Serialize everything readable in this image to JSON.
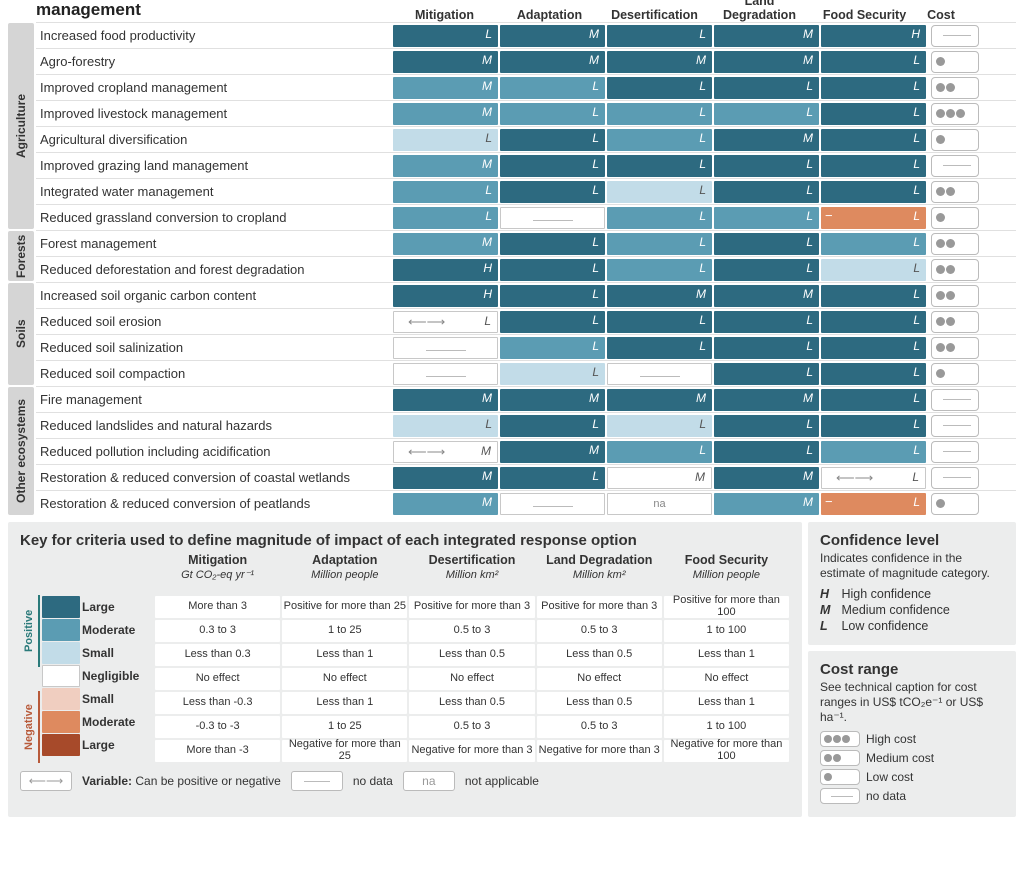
{
  "title": "Response options based on land management",
  "columns": [
    "Mitigation",
    "Adaptation",
    "Desertification",
    "Land Degradation",
    "Food Security"
  ],
  "cost_header": "Cost",
  "colors": {
    "pos_large": "#2d6a80",
    "pos_moderate": "#5b9cb3",
    "pos_small": "#c2dce8",
    "negligible": "#ffffff",
    "neg_small": "#f0cec0",
    "neg_moderate": "#de8a5f",
    "neg_large": "#a74a2a",
    "border": "#c8c8c8",
    "bg_legend": "#eceded"
  },
  "categories": [
    {
      "name": "Agriculture",
      "span": 8
    },
    {
      "name": "Forests",
      "span": 2
    },
    {
      "name": "Soils",
      "span": 4
    },
    {
      "name": "Other ecosystems",
      "span": 5
    }
  ],
  "rows": [
    {
      "label": "Increased food productivity",
      "cells": [
        {
          "c": "pos_large",
          "k": "L"
        },
        {
          "c": "pos_large",
          "k": "M"
        },
        {
          "c": "pos_large",
          "k": "L"
        },
        {
          "c": "pos_large",
          "k": "M"
        },
        {
          "c": "pos_large",
          "k": "H"
        }
      ],
      "cost": "nodata"
    },
    {
      "label": "Agro-forestry",
      "cells": [
        {
          "c": "pos_large",
          "k": "M"
        },
        {
          "c": "pos_large",
          "k": "M"
        },
        {
          "c": "pos_large",
          "k": "M"
        },
        {
          "c": "pos_large",
          "k": "M"
        },
        {
          "c": "pos_large",
          "k": "L"
        }
      ],
      "cost": 1
    },
    {
      "label": "Improved cropland management",
      "cells": [
        {
          "c": "pos_moderate",
          "k": "M"
        },
        {
          "c": "pos_moderate",
          "k": "L"
        },
        {
          "c": "pos_large",
          "k": "L"
        },
        {
          "c": "pos_large",
          "k": "L"
        },
        {
          "c": "pos_large",
          "k": "L"
        }
      ],
      "cost": 2
    },
    {
      "label": "Improved livestock management",
      "cells": [
        {
          "c": "pos_moderate",
          "k": "M"
        },
        {
          "c": "pos_moderate",
          "k": "L"
        },
        {
          "c": "pos_moderate",
          "k": "L"
        },
        {
          "c": "pos_moderate",
          "k": "L"
        },
        {
          "c": "pos_large",
          "k": "L"
        }
      ],
      "cost": 3
    },
    {
      "label": "Agricultural diversification",
      "cells": [
        {
          "c": "pos_small",
          "k": "L"
        },
        {
          "c": "pos_large",
          "k": "L"
        },
        {
          "c": "pos_moderate",
          "k": "L"
        },
        {
          "c": "pos_large",
          "k": "M"
        },
        {
          "c": "pos_large",
          "k": "L"
        }
      ],
      "cost": 1
    },
    {
      "label": "Improved grazing land management",
      "cells": [
        {
          "c": "pos_moderate",
          "k": "M"
        },
        {
          "c": "pos_large",
          "k": "L"
        },
        {
          "c": "pos_large",
          "k": "L"
        },
        {
          "c": "pos_large",
          "k": "L"
        },
        {
          "c": "pos_large",
          "k": "L"
        }
      ],
      "cost": "nodata"
    },
    {
      "label": "Integrated water management",
      "cells": [
        {
          "c": "pos_moderate",
          "k": "L"
        },
        {
          "c": "pos_large",
          "k": "L"
        },
        {
          "c": "pos_small",
          "k": "L"
        },
        {
          "c": "pos_large",
          "k": "L"
        },
        {
          "c": "pos_large",
          "k": "L"
        }
      ],
      "cost": 2
    },
    {
      "label": "Reduced grassland conversion to cropland",
      "cells": [
        {
          "c": "pos_moderate",
          "k": "L"
        },
        {
          "c": "negligible",
          "k": "",
          "nodata": true
        },
        {
          "c": "pos_moderate",
          "k": "L"
        },
        {
          "c": "pos_moderate",
          "k": "L"
        },
        {
          "c": "neg_moderate",
          "k": "L",
          "neg": true
        }
      ],
      "cost": 1
    },
    {
      "label": "Forest management",
      "cells": [
        {
          "c": "pos_moderate",
          "k": "M"
        },
        {
          "c": "pos_large",
          "k": "L"
        },
        {
          "c": "pos_moderate",
          "k": "L"
        },
        {
          "c": "pos_large",
          "k": "L"
        },
        {
          "c": "pos_moderate",
          "k": "L"
        }
      ],
      "cost": 2
    },
    {
      "label": "Reduced deforestation and forest degradation",
      "cells": [
        {
          "c": "pos_large",
          "k": "H"
        },
        {
          "c": "pos_large",
          "k": "L"
        },
        {
          "c": "pos_moderate",
          "k": "L"
        },
        {
          "c": "pos_large",
          "k": "L"
        },
        {
          "c": "pos_small",
          "k": "L"
        }
      ],
      "cost": 2
    },
    {
      "label": "Increased soil organic carbon content",
      "cells": [
        {
          "c": "pos_large",
          "k": "H"
        },
        {
          "c": "pos_large",
          "k": "L"
        },
        {
          "c": "pos_large",
          "k": "M"
        },
        {
          "c": "pos_large",
          "k": "M"
        },
        {
          "c": "pos_large",
          "k": "L"
        }
      ],
      "cost": 2
    },
    {
      "label": "Reduced soil erosion",
      "cells": [
        {
          "c": "negligible",
          "k": "L",
          "variable": true
        },
        {
          "c": "pos_large",
          "k": "L"
        },
        {
          "c": "pos_large",
          "k": "L"
        },
        {
          "c": "pos_large",
          "k": "L"
        },
        {
          "c": "pos_large",
          "k": "L"
        }
      ],
      "cost": 2
    },
    {
      "label": "Reduced soil salinization",
      "cells": [
        {
          "c": "negligible",
          "k": "",
          "nodata": true
        },
        {
          "c": "pos_moderate",
          "k": "L"
        },
        {
          "c": "pos_large",
          "k": "L"
        },
        {
          "c": "pos_large",
          "k": "L"
        },
        {
          "c": "pos_large",
          "k": "L"
        }
      ],
      "cost": 2
    },
    {
      "label": "Reduced soil compaction",
      "cells": [
        {
          "c": "negligible",
          "k": "",
          "nodata": true
        },
        {
          "c": "pos_small",
          "k": "L"
        },
        {
          "c": "negligible",
          "k": "",
          "nodata": true
        },
        {
          "c": "pos_large",
          "k": "L"
        },
        {
          "c": "pos_large",
          "k": "L"
        }
      ],
      "cost": 1
    },
    {
      "label": "Fire management",
      "cells": [
        {
          "c": "pos_large",
          "k": "M"
        },
        {
          "c": "pos_large",
          "k": "M"
        },
        {
          "c": "pos_large",
          "k": "M"
        },
        {
          "c": "pos_large",
          "k": "M"
        },
        {
          "c": "pos_large",
          "k": "L"
        }
      ],
      "cost": "nodata"
    },
    {
      "label": "Reduced landslides and natural hazards",
      "cells": [
        {
          "c": "pos_small",
          "k": "L"
        },
        {
          "c": "pos_large",
          "k": "L"
        },
        {
          "c": "pos_small",
          "k": "L"
        },
        {
          "c": "pos_large",
          "k": "L"
        },
        {
          "c": "pos_large",
          "k": "L"
        }
      ],
      "cost": "nodata"
    },
    {
      "label": "Reduced pollution including acidification",
      "cells": [
        {
          "c": "negligible",
          "k": "M",
          "variable": true
        },
        {
          "c": "pos_large",
          "k": "M"
        },
        {
          "c": "pos_moderate",
          "k": "L"
        },
        {
          "c": "pos_large",
          "k": "L"
        },
        {
          "c": "pos_moderate",
          "k": "L"
        }
      ],
      "cost": "nodata"
    },
    {
      "label": "Restoration & reduced conversion of coastal wetlands",
      "cells": [
        {
          "c": "pos_large",
          "k": "M"
        },
        {
          "c": "pos_large",
          "k": "L"
        },
        {
          "c": "negligible",
          "k": "M",
          "nodata": false
        },
        {
          "c": "pos_large",
          "k": "M"
        },
        {
          "c": "negligible",
          "k": "L",
          "variable": true
        }
      ],
      "cost": "nodata"
    },
    {
      "label": "Restoration & reduced conversion of peatlands",
      "cells": [
        {
          "c": "pos_moderate",
          "k": "M"
        },
        {
          "c": "negligible",
          "k": "",
          "nodata": true
        },
        {
          "c": "negligible",
          "k": "",
          "na": true
        },
        {
          "c": "pos_moderate",
          "k": "M"
        },
        {
          "c": "neg_moderate",
          "k": "L",
          "neg": true
        }
      ],
      "cost": 1
    }
  ],
  "key": {
    "title": "Key for criteria used to define magnitude of impact of each integrated response option",
    "cols": [
      {
        "h": "Mitigation",
        "u": "Gt CO₂-eq yr⁻¹"
      },
      {
        "h": "Adaptation",
        "u": "Million people"
      },
      {
        "h": "Desertification",
        "u": "Million km²"
      },
      {
        "h": "Land Degradation",
        "u": "Million km²"
      },
      {
        "h": "Food Security",
        "u": "Million people"
      }
    ],
    "side_pos": "Positive",
    "side_neg": "Negative",
    "levels": [
      "Large",
      "Moderate",
      "Small",
      "Negligible",
      "Small",
      "Moderate",
      "Large"
    ],
    "level_colors": [
      "pos_large",
      "pos_moderate",
      "pos_small",
      "negligible",
      "neg_small",
      "neg_moderate",
      "neg_large"
    ],
    "data": [
      [
        "More than 3",
        "Positive for more than 25",
        "Positive for more than 3",
        "Positive for more than 3",
        "Positive for more than 100"
      ],
      [
        "0.3 to 3",
        "1 to 25",
        "0.5 to 3",
        "0.5 to 3",
        "1 to 100"
      ],
      [
        "Less than 0.3",
        "Less than 1",
        "Less than 0.5",
        "Less than 0.5",
        "Less than 1"
      ],
      [
        "No effect",
        "No effect",
        "No effect",
        "No effect",
        "No effect"
      ],
      [
        "Less than -0.3",
        "Less than 1",
        "Less than 0.5",
        "Less than 0.5",
        "Less than 1"
      ],
      [
        "-0.3 to -3",
        "1 to 25",
        "0.5 to 3",
        "0.5 to 3",
        "1 to 100"
      ],
      [
        "More than -3",
        "Negative for more than 25",
        "Negative for more than 3",
        "Negative for more than 3",
        "Negative for more than 100"
      ]
    ],
    "footer_variable": "Variable:",
    "footer_variable_txt": "Can be positive or negative",
    "footer_nodata": "no data",
    "footer_na": "not applicable",
    "footer_na_sym": "na"
  },
  "confidence": {
    "title": "Confidence level",
    "sub": "Indicates confidence in the estimate of magnitude category.",
    "items": [
      {
        "k": "H",
        "t": "High confidence"
      },
      {
        "k": "M",
        "t": "Medium confidence"
      },
      {
        "k": "L",
        "t": "Low confidence"
      }
    ]
  },
  "cost_range": {
    "title": "Cost range",
    "sub": "See technical caption for cost ranges in US$ tCO₂e⁻¹ or US$ ha⁻¹.",
    "items": [
      {
        "dots": 3,
        "t": "High cost"
      },
      {
        "dots": 2,
        "t": "Medium cost"
      },
      {
        "dots": 1,
        "t": "Low cost"
      },
      {
        "dots": 0,
        "t": "no data"
      }
    ]
  }
}
